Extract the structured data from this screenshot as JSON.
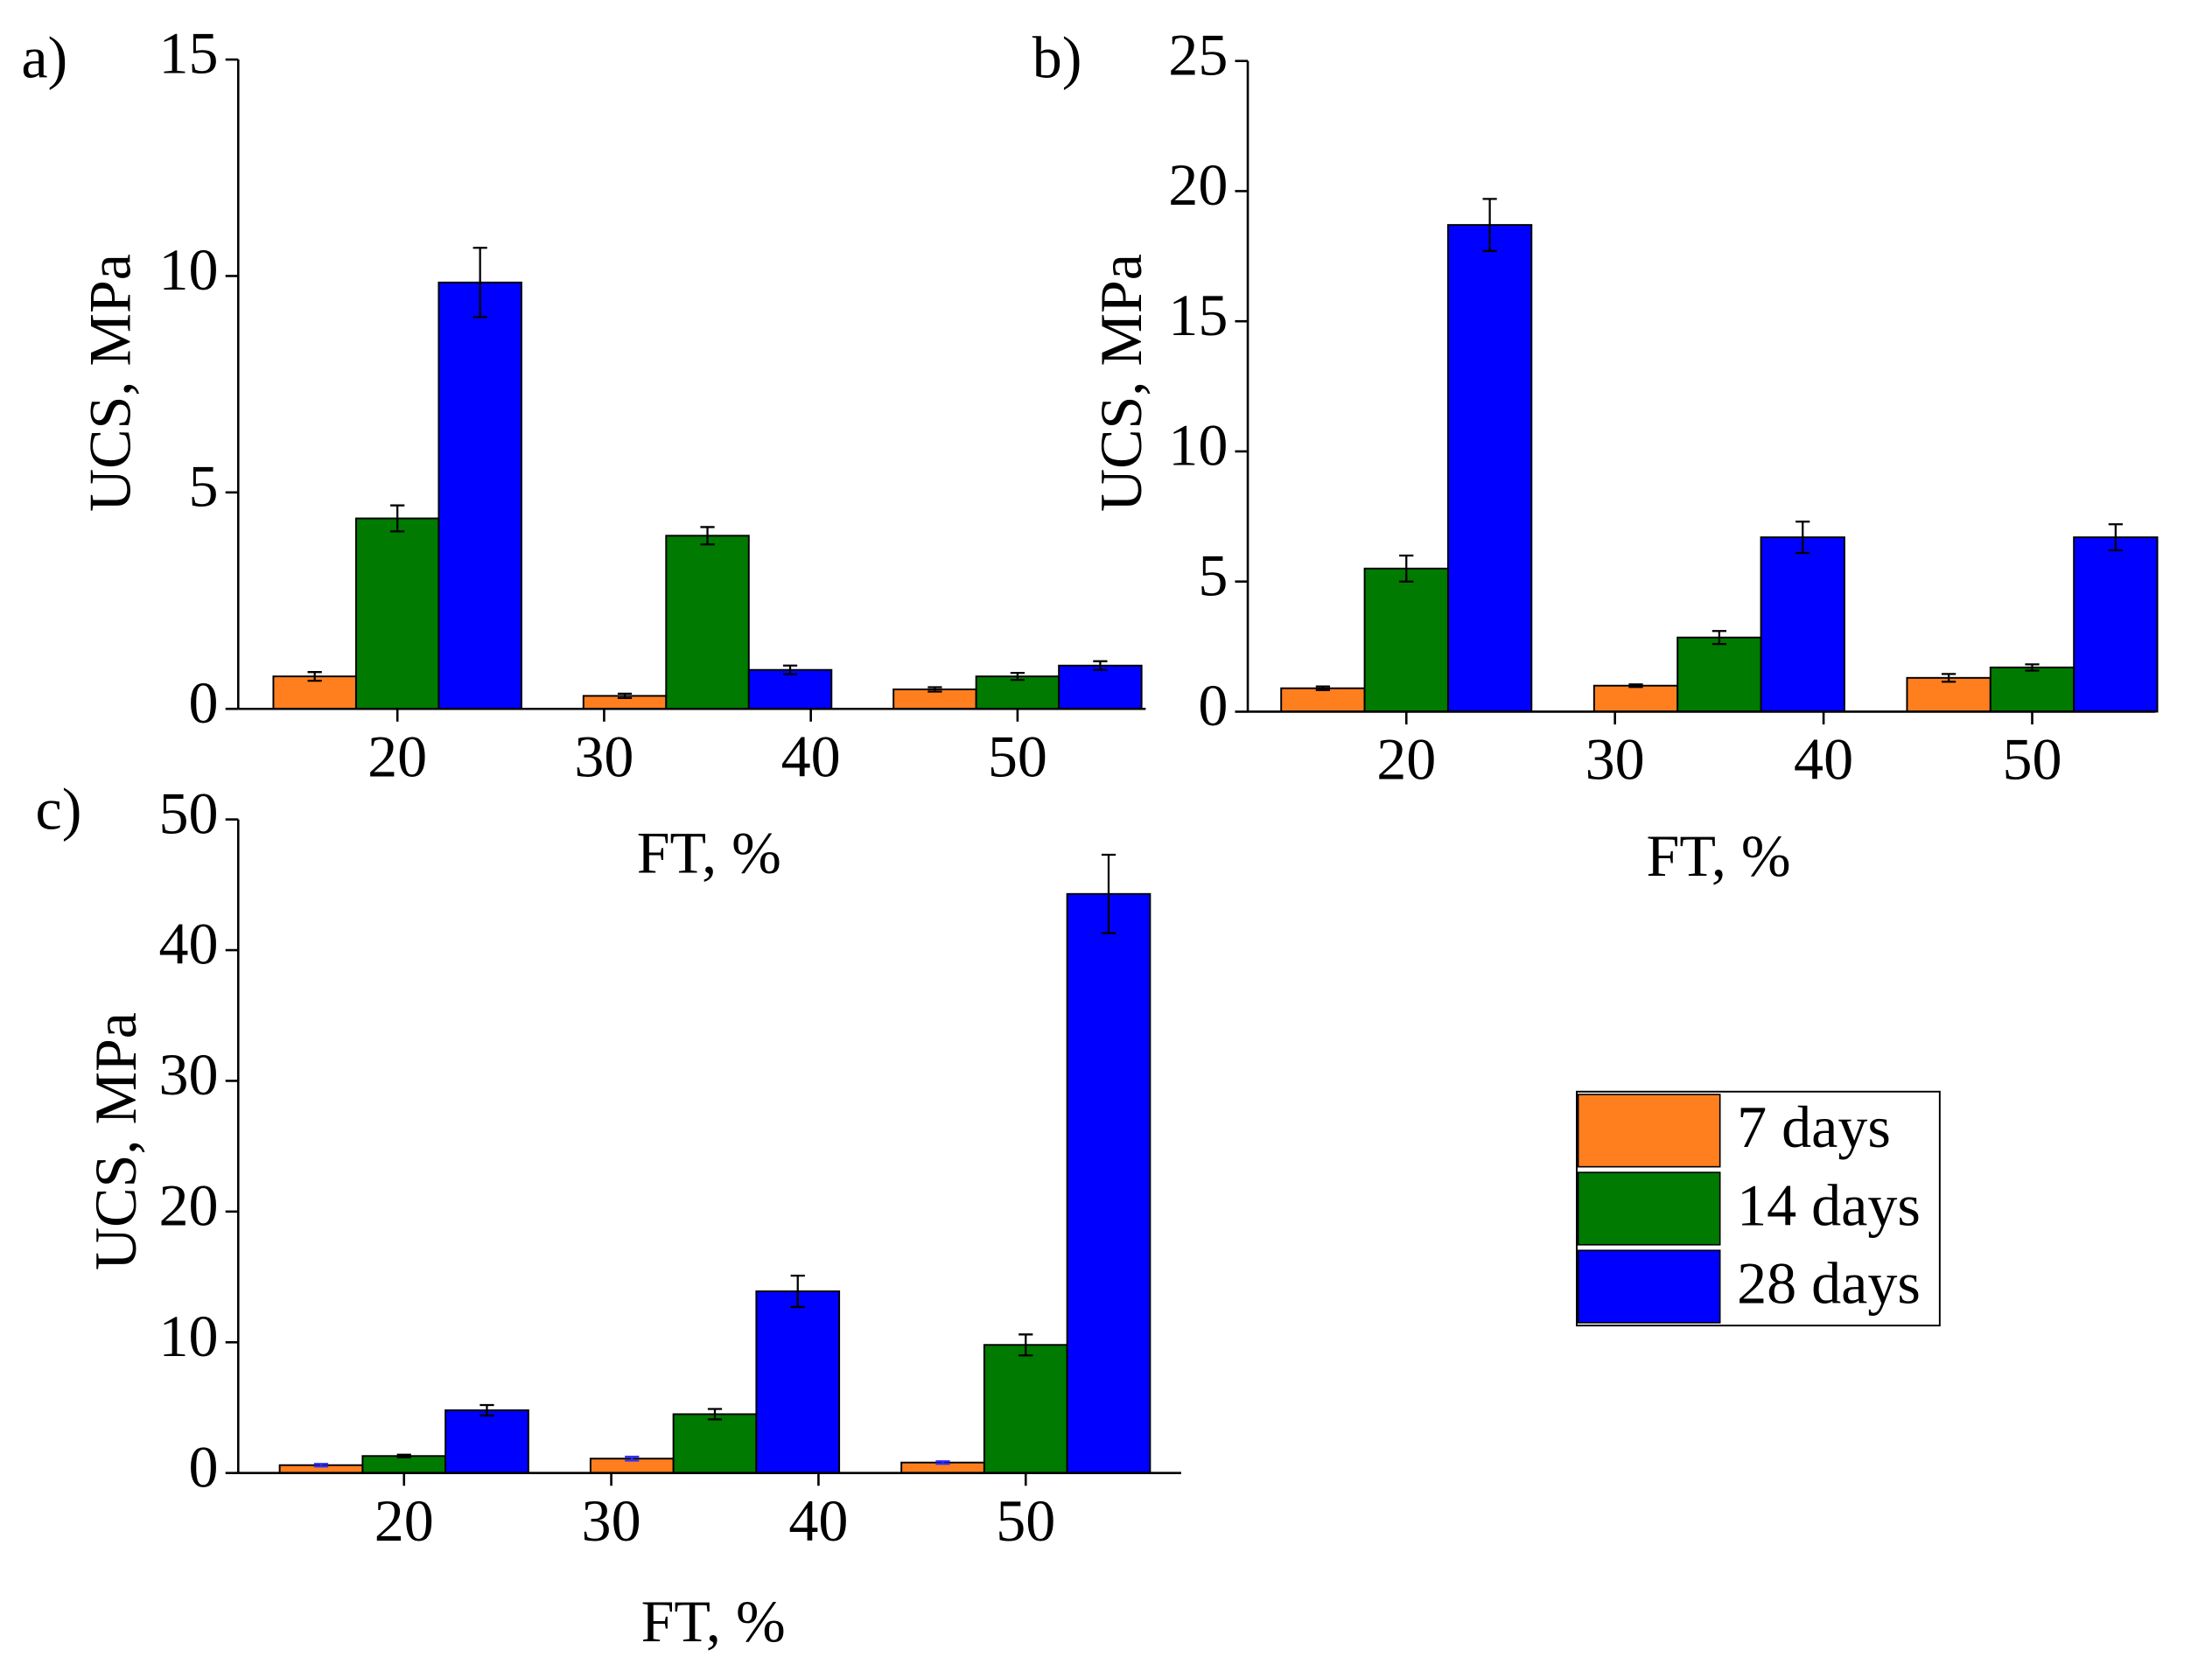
{
  "chart_data": [
    {
      "type": "bar",
      "panel_label": "a)",
      "ylabel": "UCS, MPa",
      "xlabel": "FT, %",
      "x": [
        20,
        35,
        50
      ],
      "xlim": [
        12.3,
        56.2
      ],
      "xticks": [
        20,
        30,
        40,
        50
      ],
      "ylim": [
        0,
        15
      ],
      "yticks": [
        0,
        5,
        10,
        15
      ],
      "series": [
        {
          "name": "7 days",
          "color": "#ff7f1f",
          "values": [
            0.75,
            0.3,
            0.45
          ],
          "errors": [
            0.1,
            0.05,
            0.05
          ]
        },
        {
          "name": "14 days",
          "color": "#007a00",
          "values": [
            4.4,
            4.0,
            0.75
          ],
          "errors": [
            0.3,
            0.2,
            0.08
          ]
        },
        {
          "name": "28 days",
          "color": "#0000ff",
          "values": [
            9.85,
            0.9,
            1.0
          ],
          "errors": [
            0.8,
            0.1,
            0.1
          ]
        }
      ]
    },
    {
      "type": "bar",
      "panel_label": "b)",
      "ylabel": "UCS, MPa",
      "xlabel": "FT, %",
      "x": [
        20,
        35,
        50
      ],
      "xlim": [
        12.4,
        55.9
      ],
      "xticks": [
        20,
        30,
        40,
        50
      ],
      "ylim": [
        0,
        25
      ],
      "yticks": [
        0,
        5,
        10,
        15,
        20,
        25
      ],
      "series": [
        {
          "name": "7 days",
          "color": "#ff7f1f",
          "values": [
            0.9,
            1.0,
            1.3
          ],
          "errors": [
            0.07,
            0.05,
            0.15
          ]
        },
        {
          "name": "14 days",
          "color": "#007a00",
          "values": [
            5.5,
            2.85,
            1.7
          ],
          "errors": [
            0.5,
            0.25,
            0.12
          ]
        },
        {
          "name": "28 days",
          "color": "#0000ff",
          "values": [
            18.7,
            6.7,
            6.7
          ],
          "errors": [
            1.0,
            0.6,
            0.5
          ]
        }
      ]
    },
    {
      "type": "bar",
      "panel_label": "c)",
      "ylabel": "UCS, MPa",
      "xlabel": "FT, %",
      "x": [
        20,
        35,
        50
      ],
      "xlim": [
        12.0,
        57.5
      ],
      "xticks": [
        20,
        30,
        40,
        50
      ],
      "ylim": [
        0,
        50
      ],
      "yticks": [
        0,
        10,
        20,
        30,
        40,
        50
      ],
      "series": [
        {
          "name": "7 days",
          "color": "#ff7f1f",
          "values": [
            0.6,
            1.1,
            0.8
          ],
          "errors": [
            0.1,
            0.15,
            0.1
          ]
        },
        {
          "name": "14 days",
          "color": "#007a00",
          "values": [
            1.3,
            4.5,
            9.8
          ],
          "errors": [
            0.1,
            0.4,
            0.8
          ]
        },
        {
          "name": "28 days",
          "color": "#0000ff",
          "values": [
            4.8,
            13.9,
            44.3
          ],
          "errors": [
            0.4,
            1.2,
            3.0
          ]
        }
      ]
    }
  ]
}
